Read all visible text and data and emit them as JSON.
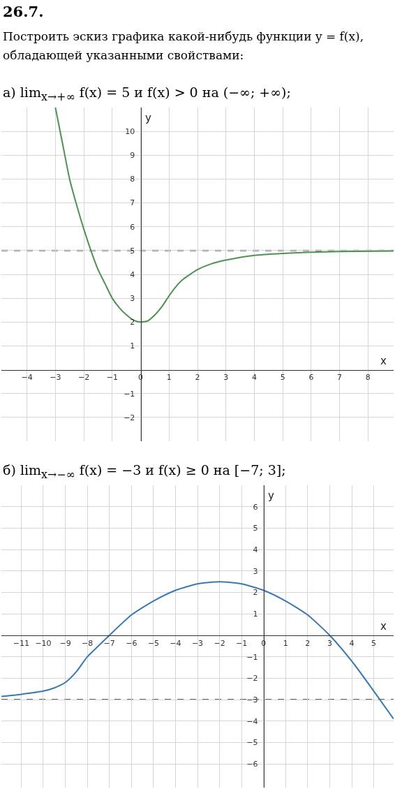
{
  "chart_data": [
    {
      "type": "line",
      "title": "26.7.",
      "subtitle": "Построить эскиз графика какой-нибудь функции y = f(x), обладающей указанными свойствами:",
      "annotations": [
        "а) lim$_{x→+∞}$ f(x) = 5  и  f(x) > 0 на (−∞; +∞);"
      ],
      "xlabel": "x",
      "ylabel": "y",
      "xlim": [
        -4.9,
        8.9
      ],
      "ylim": [
        -3,
        11
      ],
      "xticks": [
        -4,
        -3,
        -2,
        -1,
        0,
        1,
        2,
        3,
        4,
        5,
        6,
        7,
        8
      ],
      "yticks": [
        -2,
        -1,
        1,
        2,
        3,
        4,
        5,
        6,
        7,
        8,
        9,
        10
      ],
      "grid": true,
      "line_style": "solid",
      "series": [
        {
          "color": "#4e9150",
          "x": [
            -3,
            -2.75,
            -2.5,
            -2.25,
            -2,
            -1.75,
            -1.5,
            -1.25,
            -1,
            -0.75,
            -0.5,
            -0.25,
            0,
            0.25,
            0.5,
            0.75,
            1,
            1.25,
            1.5,
            2,
            2.5,
            3,
            4,
            5,
            6,
            7,
            8.9
          ],
          "values": [
            11,
            9.5,
            8,
            6.9,
            5.9,
            5,
            4.2,
            3.6,
            3.0,
            2.6,
            2.3,
            2.08,
            2,
            2.05,
            2.3,
            2.65,
            3.1,
            3.5,
            3.8,
            4.2,
            4.45,
            4.6,
            4.8,
            4.88,
            4.93,
            4.96,
            4.98
          ]
        }
      ],
      "ref_lines": [
        {
          "axis": "y",
          "value": 5,
          "color": "#666666",
          "line_style": "dashed"
        }
      ]
    },
    {
      "type": "line",
      "title": "б) lim$_{x→−∞}$ f(x) = −3  и  f(x) ≥ 0 на [−7; 3];",
      "xlabel": "x",
      "ylabel": "y",
      "xlim": [
        -11.9,
        5.9
      ],
      "ylim": [
        -7.1,
        7
      ],
      "xticks": [
        -11,
        -10,
        -9,
        -8,
        -7,
        -6,
        -5,
        -4,
        -3,
        -2,
        -1,
        0,
        1,
        2,
        3,
        4,
        5
      ],
      "yticks": [
        -6,
        -5,
        -4,
        -3,
        -2,
        -1,
        1,
        2,
        3,
        4,
        5,
        6
      ],
      "grid": true,
      "line_style": "solid",
      "series": [
        {
          "color": "#3a78b0",
          "x": [
            -11.9,
            -11,
            -10,
            -9.5,
            -9,
            -8.5,
            -8,
            -7.5,
            -7,
            -6,
            -5,
            -4,
            -3,
            -2,
            -1,
            0,
            1,
            2,
            3,
            4,
            5,
            5.9
          ],
          "values": [
            -2.85,
            -2.75,
            -2.6,
            -2.45,
            -2.2,
            -1.7,
            -1.0,
            -0.5,
            0,
            0.95,
            1.6,
            2.1,
            2.4,
            2.5,
            2.4,
            2.1,
            1.6,
            0.95,
            0,
            -1.2,
            -2.6,
            -3.9
          ]
        }
      ],
      "ref_lines": [
        {
          "axis": "y",
          "value": -3,
          "color": "#666666",
          "line_style": "dashed"
        }
      ]
    }
  ]
}
